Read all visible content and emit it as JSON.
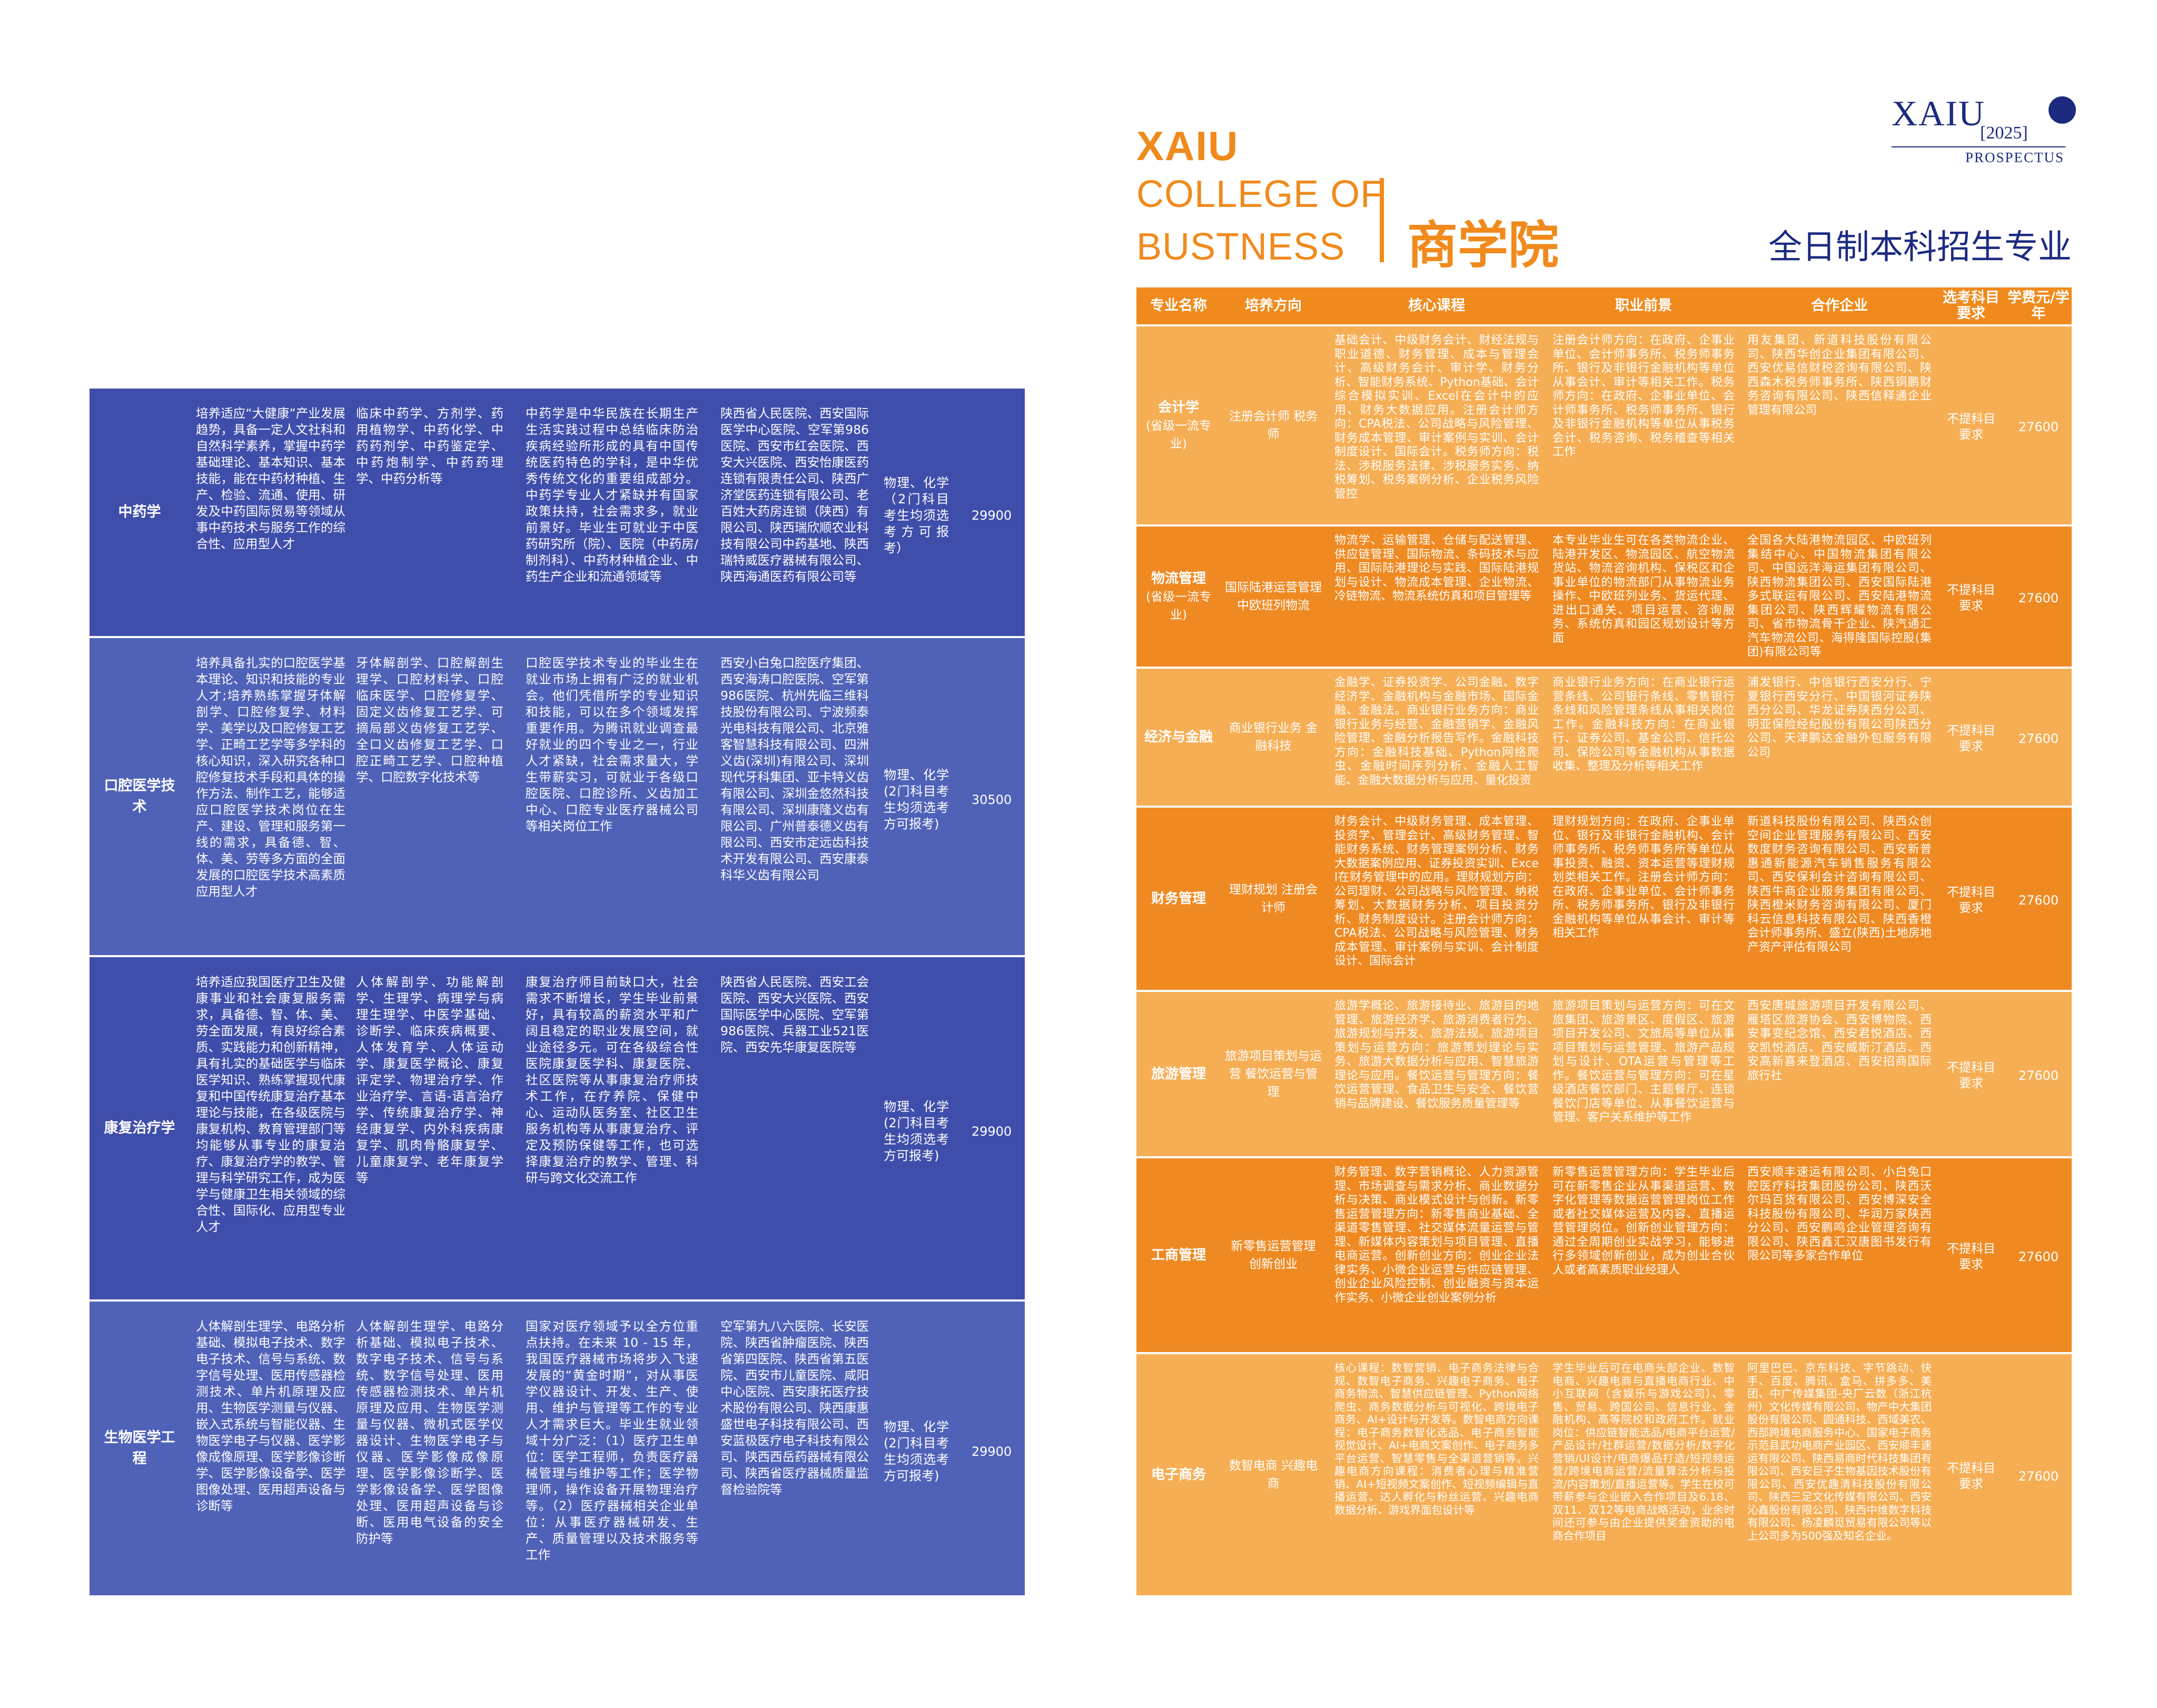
{
  "left_table": {
    "rows": [
      {
        "name": "中药学",
        "objective": "培养适应“大健康”产业发展趋势，具备一定人文社科和自然科学素养，掌握中药学基础理论、基本知识、基本技能，能在中药材种植、生产、检验、流通、使用、研发及中药国际贸易等领域从事中药技术与服务工作的综合性、应用型人才",
        "courses": "临床中药学、方剂学、药用植物学、中药化学、中药药剂学、中药鉴定学、中药炮制学、中药药理学、中药分析等",
        "prospects": "中药学是中华民族在长期生产生活实践过程中总结临床防治疾病经验所形成的具有中国传统医药特色的学科，是中华优秀传统文化的重要组成部分。中药学专业人才紧缺并有国家政策扶持，社会需求多，就业前景好。毕业生可就业于中医药研究所（院）、医院（中药房/制剂科）、中药材种植企业、中药生产企业和流通领域等",
        "partners": "陕西省人民医院、西安国际医学中心医院、空军第986医院、西安市红会医院、西安大兴医院、西安怡康医药连锁有限责任公司、陕西广济堂医药连锁有限公司、老百姓大药房连锁（陕西）有限公司、陕西瑞欣顺农业科技有限公司中药基地、陕西瑞特威医疗器械有限公司、陕西海通医药有限公司等",
        "requirement": "物理、化学（2门科目考生均须选考方可报考）",
        "fee": "29900"
      },
      {
        "name": "口腔医学技术",
        "objective": "培养具备扎实的口腔医学基本理论、知识和技能的专业人才;培养熟练掌握牙体解剖学、口腔修复学、材料学、美学以及口腔修复工艺学、正畸工艺学等多学科的核心知识，深入研究各种口腔修复技术手段和具体的操作方法、制作工艺，能够适应口腔医学技术岗位在生产、建设、管理和服务第一线的需求，具备德、智、体、美、劳等多方面的全面发展的口腔医学技术高素质应用型人才",
        "courses": "牙体解剖学、口腔解剖生理学、口腔材料学、口腔临床医学、口腔修复学、固定义齿修复工艺学、可摘局部义齿修复工艺学、全口义齿修复工艺学、口腔正畸工艺学、口腔种植学、口腔数字化技术等",
        "prospects": "口腔医学技术专业的毕业生在就业市场上拥有广泛的就业机会。他们凭借所学的专业知识和技能，可以在多个领域发挥重要作用。为腾讯就业调查最好就业的四个专业之一，行业人才紧缺，社会需求量大，学生带薪实习，可就业于各级口腔医院、口腔诊所、义齿加工中心、口腔专业医疗器械公司等相关岗位工作",
        "partners": "西安小白兔口腔医疗集团、西安海涛口腔医院、空军第986医院、杭州先临三维科技股份有限公司、宁波频泰光电科技有限公司、北京雅客智慧科技有限公司、四洲义齿(深圳)有限公司、深圳现代牙科集团、亚卡特义齿有限公司、深圳金悠然科技有限公司、深圳康隆义齿有限公司、广州普泰德义齿有限公司、西安市定远齿科技术开发有限公司、西安康泰科华义齿有限公司",
        "requirement": "物理、化学(2门科目考生均须选考方可报考)",
        "fee": "30500"
      },
      {
        "name": "康复治疗学",
        "objective": "培养适应我国医疗卫生及健康事业和社会康复服务需求，具备德、智、体、美、劳全面发展，有良好综合素质、实践能力和创新精神，具有扎实的基础医学与临床医学知识、熟练掌握现代康复和中国传统康复治疗基本理论与技能，在各级医院与康复机构、教育管理部门等均能够从事专业的康复治疗、康复治疗学的教学、管理与科学研究工作，成为医学与健康卫生相关领域的综合性、国际化、应用型专业人才",
        "courses": "人体解剖学、功能解剖学、生理学、病理学与病理生理学、中医学基础、诊断学、临床疾病概要、人体发育学、人体运动学、康复医学概论、康复评定学、物理治疗学、作业治疗学、言语-语言治疗学、传统康复治疗学、神经康复学、内外科疾病康复学、肌肉骨骼康复学、儿童康复学、老年康复学等",
        "prospects": "康复治疗师目前缺口大，社会需求不断增长，学生毕业前景好，具有较高的薪资水平和广阔且稳定的职业发展空间，就业途径多元。可在各级综合性医院康复医学科、康复医院、社区医院等从事康复治疗师技术工作，在疗养院、保健中心、运动队医务室、社区卫生服务机构等从事康复治疗、评定及预防保健等工作，也可选择康复治疗的教学、管理、科研与跨文化交流工作",
        "partners": "陕西省人民医院、西安工会医院、西安大兴医院、西安国际医学中心医院、空军第986医院、兵器工业521医院、西安先华康复医院等",
        "requirement": "物理、化学(2门科目考生均须选考方可报考)",
        "fee": "29900"
      },
      {
        "name": "生物医学工程",
        "objective": "人体解剖生理学、电路分析基础、模拟电子技术、数字电子技术、信号与系统、数字信号处理、医用传感器检测技术、单片机原理及应用、生物医学测量与仪器、嵌入式系统与智能仪器、生物医学电子与仪器、医学影像成像原理、医学影像诊断学、医学影像设备学、医学图像处理、医用超声设备与诊断等",
        "courses": "人体解剖生理学、电路分析基础、模拟电子技术、数字电子技术、信号与系统、数字信号处理、医用传感器检测技术、单片机原理及应用、生物医学测量与仪器、微机式医学仪器设计、生物医学电子与仪器、医学影像成像原理、医学影像诊断学、医学影像设备学、医学图像处理、医用超声设备与诊断、医用电气设备的安全防护等",
        "prospects": "国家对医疗领域予以全方位重点扶持。在未来 10 - 15 年，我国医疗器械市场将步入飞速发展的“黄金时期”，对从事医学仪器设计、开发、生产、使用、维护与管理等工作的专业人才需求巨大。毕业生就业领域十分广泛：（1）医疗卫生单位：医学工程师，负责医疗器械管理与维护等工作；医学物理师，操作设备开展物理治疗等。（2）医疗器械相关企业单位：从事医疗器械研发、生产、质量管理以及技术服务等工作",
        "partners": "空军第九八六医院、长安医院、陕西省肿瘤医院、陕西省第四医院、陕西省第五医院、西安市儿童医院、咸阳中心医院、西安康拓医疗技术股份有限公司、陕西康惠盛世电子科技有限公司、西安蓝极医疗电子科技有限公司、陕西西岳药器械有限公司、陕西省医疗器械质量监督检验院等",
        "requirement": "物理、化学(2门科目考生均须选考方可报考)",
        "fee": "29900"
      }
    ]
  },
  "header": {
    "brand": "XAIU",
    "college_en_line1": "COLLEGE OF",
    "college_en_line2": "BUSTNESS",
    "college_cn": "商学院",
    "logo_text": "XAIU",
    "logo_year": "[2025]",
    "logo_sub": "PROSPECTUS",
    "subtitle": "全日制本科招生专业"
  },
  "right_table": {
    "headers": {
      "name": "专业名称",
      "direction": "培养方向",
      "courses": "核心课程",
      "career": "职业前景",
      "partners": "合作企业",
      "requirement": "选考科目要求",
      "fee": "学费元/学年"
    },
    "rows": [
      {
        "name": "会计学",
        "tag": "(省级一流专业)",
        "direction": "注册会计师 税务师",
        "courses": "基础会计、中级财务会计、财经法规与职业道德、财务管理、成本与管理会计、高级财务会计、审计学、财务分析、智能财务系统、Python基础、会计综合模拟实训、Excel在会计中的应用、财务大数据应用。注册会计师方向：CPA税法、公司战略与风险管理、财务成本管理、审计案例与实训、会计制度设计、国际会计。税务师方向：税法、涉税服务法律、涉税服务实务、纳税筹划、税务案例分析、企业税务风险管控",
        "career": "注册会计师方向：在政府、企事业单位、会计师事务所、税务师事务所、银行及非银行金融机构等单位从事会计、审计等相关工作。税务师方向：在政府、企事业单位、会计师事务所、税务师事务所、银行及非银行金融机构等单位从事税务会计、税务咨询、税务稽查等相关工作",
        "partners": "用友集团、新道科技股份有限公司、陕西华创企业集团有限公司、西安优易信财税咨询有限公司、陕西森木税务师事务所、陕西铜鹏财务咨询有限公司、陕西信释通企业管理有限公司",
        "requirement": "不提科目要求",
        "fee": "27600"
      },
      {
        "name": "物流管理",
        "tag": "(省级一流专业)",
        "direction": "国际陆港运营管理 中欧班列物流",
        "courses": "物流学、运输管理、仓储与配送管理、供应链管理、国际物流、条码技术与应用、国际陆港理论与实践、国际陆港规划与设计、物流成本管理、企业物流、冷链物流、物流系统仿真和项目管理等",
        "career": "本专业毕业生可在各类物流企业、陆港开发区、物流园区、航空物流货站、物流咨询机构、保税区和企事业单位的物流部门从事物流业务操作、中欧班列业务、货运代理、进出口通关、项目运营、咨询服务、系统仿真和园区规划设计等方面",
        "partners": "全国各大陆港物流园区、中欧班列集结中心、中国物流集团有限公司、中国远洋海运集团有限公司、陕西物流集团公司、西安国际陆港多式联运有限公司、西安陆港物流集团公司、陕西辉耀物流有限公司、省市物流骨干企业、陕汽通汇汽车物流公司、海得隆国际控股(集团)有限公司等",
        "requirement": "不提科目要求",
        "fee": "27600"
      },
      {
        "name": "经济与金融",
        "tag": "",
        "direction": "商业银行业务 金融科技",
        "courses": "金融学、证券投资学、公司金融、数字经济学、金融机构与金融市场、国际金融、金融法。商业银行业务方向：商业银行业务与经营、金融营销学、金融风险管理、金融分析报告写作。金融科技方向：金融科技基础、Python网络爬虫、金融时间序列分析、金融人工智能、金融大数据分析与应用、量化投资",
        "career": "商业银行业务方向：在商业银行运营条线、公司银行条线、零售银行条线和风险管理条线从事相关岗位工作。金融科技方向：在商业银行、证券公司、基金公司、信托公司、保险公司等金融机构从事数据收集、整理及分析等相关工作",
        "partners": "浦发银行、中信银行西安分行、宁夏银行西安分行、中国银河证券陕西分公司、华龙证券陕西分公司、明亚保险经纪股份有限公司陕西分公司、天津鹏达金融外包服务有限公司",
        "requirement": "不提科目要求",
        "fee": "27600"
      },
      {
        "name": "财务管理",
        "tag": "",
        "direction": "理财规划 注册会计师",
        "courses": "财务会计、中级财务管理、成本管理、投资学、管理会计、高级财务管理、智能财务系统、财务管理案例分析、财务大数据案例应用、证券投资实训、Excel在财务管理中的应用。理财规划方向：公司理财、公司战略与风险管理、纳税筹划、大数据财务分析、项目投资分析、财务制度设计。注册会计师方向：CPA税法、公司战略与风险管理、财务成本管理、审计案例与实训、会计制度设计、国际会计",
        "career": "理财规划方向：在政府、企事业单位、银行及非银行金融机构、会计师事务所、税务师事务所等单位从事投资、融资、资本运营等理财规划类相关工作。注册会计师方向：在政府、企事业单位、会计师事务所、税务师事务所、银行及非银行金融机构等单位从事会计、审计等相关工作",
        "partners": "新道科技股份有限公司、陕西众创空间企业管理服务有限公司、西安数度财务咨询有限公司、西安新普惠通新能源汽车销售服务有限公司、西安保利会计咨询有限公司、陕西牛商企业服务集团有限公司、陕西橙米财务咨询有限公司、厦门科云信息科技有限公司、陕西香橙会计师事务所、盛立(陕西)土地房地产资产评估有限公司",
        "requirement": "不提科目要求",
        "fee": "27600"
      },
      {
        "name": "旅游管理",
        "tag": "",
        "direction": "旅游项目策划与运营 餐饮运营与管理",
        "courses": "旅游学概论、旅游接待业、旅游目的地管理、旅游经济学、旅游消费者行为、旅游规划与开发、旅游法规。旅游项目策划与运营方向：旅游策划理论与实务、旅游大数据分析与应用、智慧旅游理论与应用。餐饮运营与管理方向：餐饮运营管理、食品卫生与安全、餐饮营销与品牌建设、餐饮服务质量管理等",
        "career": "旅游项目策划与运营方向：可在文旅集团、旅游景区、度假区、旅游项目开发公司、文旅局等单位从事项目策划与运营管理、旅游产品规划与设计、OTA运营与管理等工作。餐饮运营与管理方向：可在星级酒店餐饮部门、主题餐厅、连锁餐饮门店等单位、从事餐饮运营与管理、客户关系维护等工作",
        "partners": "西安唐城旅游项目开发有限公司、雁塔区旅游协会、西安博物院、西安事变纪念馆、西安君悦酒店、西安凯悦酒店、西安威斯汀酒店、西安高新喜来登酒店、西安招商国际旅行社",
        "requirement": "不提科目要求",
        "fee": "27600"
      },
      {
        "name": "工商管理",
        "tag": "",
        "direction": "新零售运营管理 创新创业",
        "courses": "财务管理、数字营销概论、人力资源管理、市场调查与需求分析、商业数据分析与决策、商业模式设计与创新。新零售运营管理方向：新零售商业基础、全渠道零售管理、社交媒体流量运营与管理、新媒体内容策划与项目管理、直播电商运营。创新创业方向：创业企业法律实务、小微企业运营与供应链管理、创业企业风险控制、创业融资与资本运作实务、小微企业创业案例分析",
        "career": "新零售运营管理方向：学生毕业后可在新零售企业从事渠道运营、数字化管理等数据运营管理岗位工作或者社交媒体运营及内容、直播运营管理岗位。创新创业管理方向：通过全周期创业实战学习，能够进行多领域创新创业，成为创业合伙人或者高素质职业经理人",
        "partners": "西安顺丰速运有限公司、小白兔口腔医疗科技集团股份公司、陕西沃尔玛百货有限公司、西安博深安全科技股份有限公司、华润万家陕西分公司、西安鹏鸣企业管理咨询有限公司、陕西鑫汇汉唐图书发行有限公司等多家合作单位",
        "requirement": "不提科目要求",
        "fee": "27600"
      },
      {
        "name": "电子商务",
        "tag": "",
        "direction": "数智电商 兴趣电商",
        "courses": "核心课程：数智营销、电子商务法律与合规、数智电子商务、兴趣电子商务、电子商务物流、智慧供应链管理、Python网络爬虫、商务数据分析与可视化、跨境电子商务、AI+设计与开发等。数智电商方向课程：电子商务数智化选品、电子商务智能视觉设计、AI+电商文案创作、电子商务多平台运营、智慧零售与全渠道营销等。兴趣电商方向课程：消费者心理与精准营销、AI+短视频文案创作、短视频编辑与直播运营、达人孵化与粉丝运营、兴趣电商数据分析、游戏界面包设计等",
        "career": "学生毕业后可在电商头部企业、数智电商、兴趣电商与直播电商行业、中小互联网（含娱乐与游戏公司）、零售、贸易、跨国公司、信息行业、金融机构、高等院校和政府工作。就业岗位：供应链智能选品/电商平台运营/产品设计/社群运营/数据分析/数字化营销/UI设计/电商爆品打造/短视频运营/跨境电商运营/流量算法分析与投流/内容策划/直播运营等。学生在校可带薪参与企业嵌入合作项目及6.18、双11、双12等电商战略活动，业余时间还可参与由企业提供奖金资助的电商合作项目",
        "partners": "阿里巴巴、京东科技、字节跳动、快手、百度、腾讯、盒马、拼多多、美团、中广传媒集团-央厂云数（浙江杭州）文化传媒有限公司、物产中大集团股份有限公司、圆通科技、西域美农、西部跨境电商服务中心、国家电子商务示范县武功电商产业园区、西安顺丰速运有限公司、陕西易商时代科技集团有限公司、西安巨子生物基因技术股份有限公司、西安优趣清科技股份有限公司、陕西三足文化传媒有限公司、西安沁鑫股份有限公司、陕西中维数字科技有限公司、杨凌麟觅贸易有限公司等以上公司多为500强及知名企业。",
        "requirement": "不提科目要求",
        "fee": "27600"
      }
    ]
  }
}
